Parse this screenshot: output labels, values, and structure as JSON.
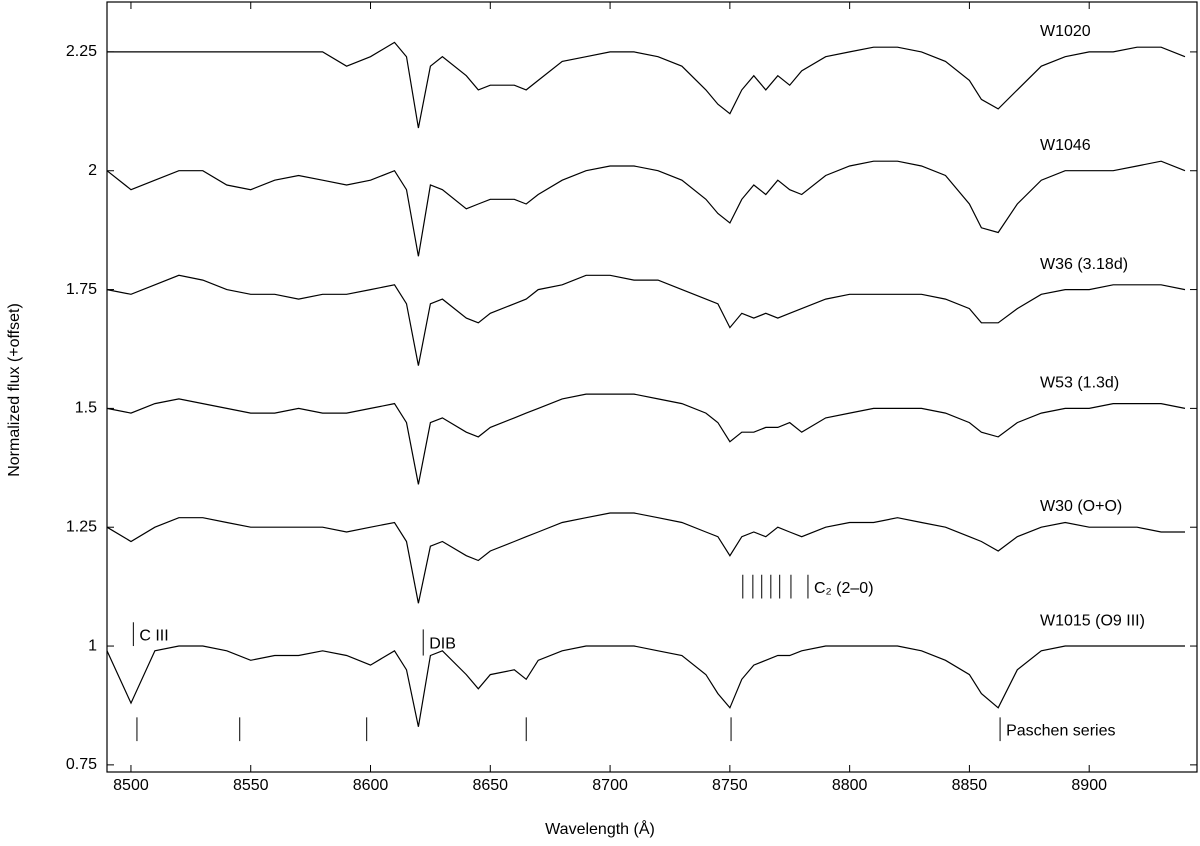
{
  "chart_data": {
    "type": "line",
    "x_label": "Wavelength (Å)",
    "y_label": "Normalized flux (+offset)",
    "xlim": [
      8490,
      8945
    ],
    "ylim": [
      0.735,
      2.355
    ],
    "xticks": [
      8500,
      8550,
      8600,
      8650,
      8700,
      8750,
      8800,
      8850,
      8900
    ],
    "yticks": [
      0.75,
      1,
      1.25,
      1.5,
      1.75,
      2,
      2.25
    ],
    "color": "#000000",
    "x": [
      8490,
      8500,
      8510,
      8520,
      8530,
      8540,
      8550,
      8560,
      8570,
      8580,
      8590,
      8600,
      8610,
      8615,
      8620,
      8625,
      8630,
      8640,
      8645,
      8650,
      8660,
      8665,
      8670,
      8680,
      8690,
      8700,
      8710,
      8720,
      8730,
      8740,
      8745,
      8750,
      8755,
      8760,
      8765,
      8770,
      8775,
      8780,
      8790,
      8800,
      8810,
      8820,
      8830,
      8840,
      8850,
      8855,
      8862,
      8870,
      8880,
      8890,
      8900,
      8910,
      8920,
      8930,
      8940
    ],
    "series": [
      {
        "name": "W1020",
        "values": [
          2.25,
          2.25,
          2.25,
          2.25,
          2.25,
          2.25,
          2.25,
          2.25,
          2.25,
          2.25,
          2.22,
          2.24,
          2.27,
          2.24,
          2.09,
          2.22,
          2.24,
          2.2,
          2.17,
          2.18,
          2.18,
          2.17,
          2.19,
          2.23,
          2.24,
          2.25,
          2.25,
          2.24,
          2.22,
          2.17,
          2.14,
          2.12,
          2.17,
          2.2,
          2.17,
          2.2,
          2.18,
          2.21,
          2.24,
          2.25,
          2.26,
          2.26,
          2.25,
          2.23,
          2.19,
          2.15,
          2.13,
          2.17,
          2.22,
          2.24,
          2.25,
          2.25,
          2.26,
          2.26,
          2.24
        ]
      },
      {
        "name": "W1046",
        "values": [
          2.0,
          1.96,
          1.98,
          2.0,
          2.0,
          1.97,
          1.96,
          1.98,
          1.99,
          1.98,
          1.97,
          1.98,
          2.0,
          1.96,
          1.82,
          1.97,
          1.96,
          1.92,
          1.93,
          1.94,
          1.94,
          1.93,
          1.95,
          1.98,
          2.0,
          2.01,
          2.01,
          2.0,
          1.98,
          1.94,
          1.91,
          1.89,
          1.94,
          1.97,
          1.95,
          1.98,
          1.96,
          1.95,
          1.99,
          2.01,
          2.02,
          2.02,
          2.01,
          1.99,
          1.93,
          1.88,
          1.87,
          1.93,
          1.98,
          2.0,
          2.0,
          2.0,
          2.01,
          2.02,
          2.0
        ]
      },
      {
        "name": "W36 (3.18d)",
        "values": [
          1.75,
          1.74,
          1.76,
          1.78,
          1.77,
          1.75,
          1.74,
          1.74,
          1.73,
          1.74,
          1.74,
          1.75,
          1.76,
          1.72,
          1.59,
          1.72,
          1.73,
          1.69,
          1.68,
          1.7,
          1.72,
          1.73,
          1.75,
          1.76,
          1.78,
          1.78,
          1.77,
          1.77,
          1.75,
          1.73,
          1.72,
          1.67,
          1.7,
          1.69,
          1.7,
          1.69,
          1.7,
          1.71,
          1.73,
          1.74,
          1.74,
          1.74,
          1.74,
          1.73,
          1.71,
          1.68,
          1.68,
          1.71,
          1.74,
          1.75,
          1.75,
          1.76,
          1.76,
          1.76,
          1.75
        ]
      },
      {
        "name": "W53 (1.3d)",
        "values": [
          1.5,
          1.49,
          1.51,
          1.52,
          1.51,
          1.5,
          1.49,
          1.49,
          1.5,
          1.49,
          1.49,
          1.5,
          1.51,
          1.47,
          1.34,
          1.47,
          1.48,
          1.45,
          1.44,
          1.46,
          1.48,
          1.49,
          1.5,
          1.52,
          1.53,
          1.53,
          1.53,
          1.52,
          1.51,
          1.49,
          1.47,
          1.43,
          1.45,
          1.45,
          1.46,
          1.46,
          1.47,
          1.45,
          1.48,
          1.49,
          1.5,
          1.5,
          1.5,
          1.49,
          1.47,
          1.45,
          1.44,
          1.47,
          1.49,
          1.5,
          1.5,
          1.51,
          1.51,
          1.51,
          1.5
        ]
      },
      {
        "name": "W30 (O+O)",
        "values": [
          1.25,
          1.22,
          1.25,
          1.27,
          1.27,
          1.26,
          1.25,
          1.25,
          1.25,
          1.25,
          1.24,
          1.25,
          1.26,
          1.22,
          1.09,
          1.21,
          1.22,
          1.19,
          1.18,
          1.2,
          1.22,
          1.23,
          1.24,
          1.26,
          1.27,
          1.28,
          1.28,
          1.27,
          1.26,
          1.24,
          1.23,
          1.19,
          1.23,
          1.24,
          1.23,
          1.25,
          1.24,
          1.23,
          1.25,
          1.26,
          1.26,
          1.27,
          1.26,
          1.25,
          1.23,
          1.22,
          1.2,
          1.23,
          1.25,
          1.26,
          1.25,
          1.25,
          1.25,
          1.24,
          1.24
        ]
      },
      {
        "name": "W1015 (O9 III)",
        "values": [
          0.99,
          0.88,
          0.99,
          1.0,
          1.0,
          0.99,
          0.97,
          0.98,
          0.98,
          0.99,
          0.98,
          0.96,
          0.99,
          0.95,
          0.83,
          0.98,
          0.99,
          0.94,
          0.91,
          0.94,
          0.95,
          0.93,
          0.97,
          0.99,
          1.0,
          1.0,
          1.0,
          0.99,
          0.98,
          0.94,
          0.9,
          0.87,
          0.93,
          0.96,
          0.97,
          0.98,
          0.98,
          0.99,
          1.0,
          1.0,
          1.0,
          1.0,
          0.99,
          0.97,
          0.94,
          0.9,
          0.87,
          0.95,
          0.99,
          1.0,
          1.0,
          1.0,
          1.0,
          1.0,
          1.0
        ]
      }
    ],
    "line_markers": [
      {
        "text": "C III",
        "positions": [
          8501
        ]
      },
      {
        "text": "DIB",
        "positions": [
          8622
        ]
      },
      {
        "text": "C₂ (2–0)",
        "positions": [
          8755.4,
          8759.6,
          8763.3,
          8767.1,
          8770.8,
          8775.5,
          8782.6
        ]
      },
      {
        "text": "Paschen series",
        "positions": [
          8502.5,
          8545.4,
          8598.4,
          8665.0,
          8750.5,
          8862.8
        ]
      }
    ]
  }
}
